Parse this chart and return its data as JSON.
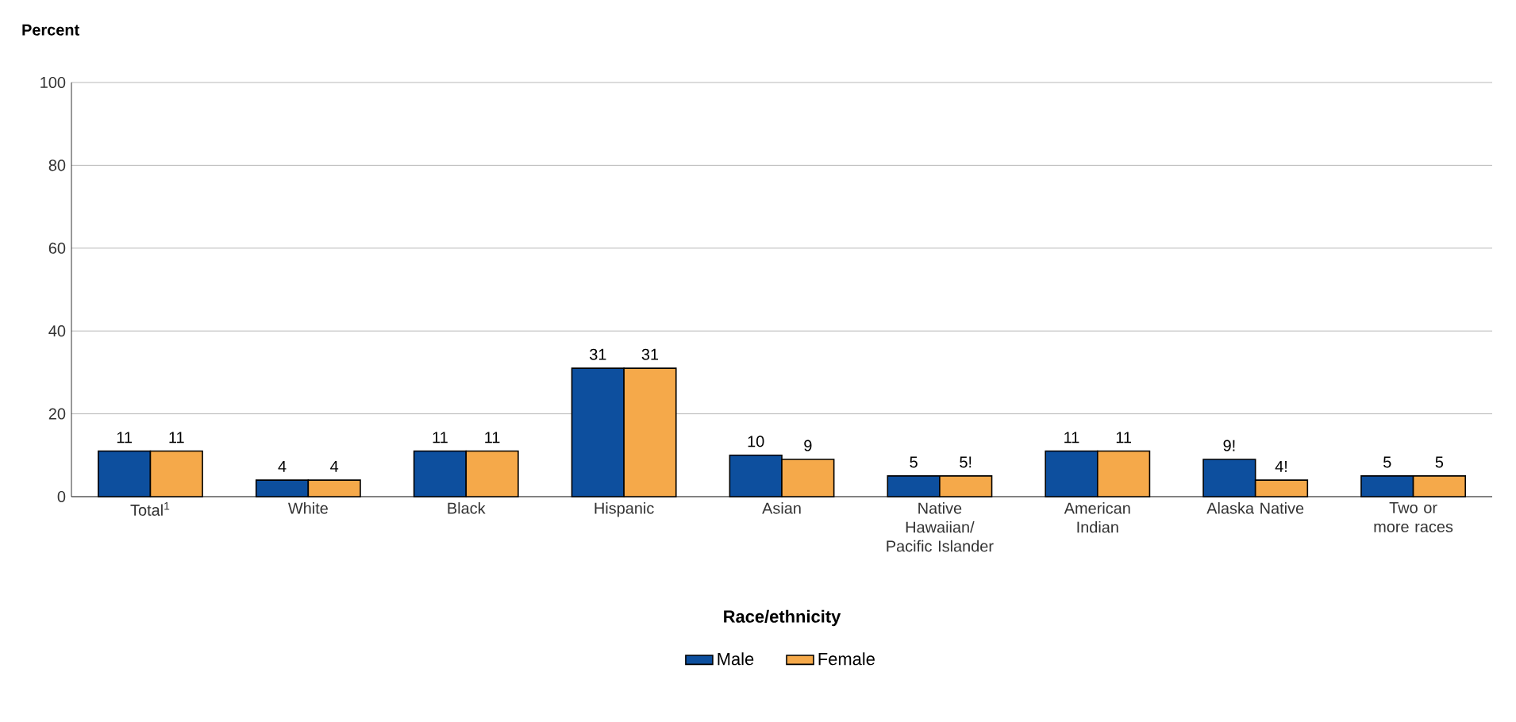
{
  "chart_data": {
    "type": "bar",
    "ylabel": "Percent",
    "xlabel": "Race/ethnicity",
    "categories": [
      "Total$^{1}$",
      "White",
      "Black",
      "Hispanic",
      "Asian",
      "Native Hawaiian/ Pacific Islander",
      "American Indian",
      "Alaska Native",
      "Two or more races"
    ],
    "series": [
      {
        "name": "Male",
        "color": "#0d4f9e",
        "values": [
          11,
          4,
          11,
          31,
          10,
          5,
          11,
          9,
          5
        ],
        "value_labels": [
          "11",
          "4",
          "11",
          "31",
          "10",
          "5",
          "11",
          "9!",
          "5"
        ]
      },
      {
        "name": "Female",
        "color": "#f5a94a",
        "values": [
          11,
          4,
          11,
          31,
          9,
          5,
          11,
          4,
          5
        ],
        "value_labels": [
          "11",
          "4",
          "11",
          "31",
          "9",
          "5!",
          "11",
          "4!",
          "5"
        ]
      }
    ],
    "ylim": [
      0,
      100
    ],
    "yticks": [
      0,
      20,
      40,
      60,
      80,
      100
    ],
    "grid": "y",
    "legend": "bottom"
  }
}
